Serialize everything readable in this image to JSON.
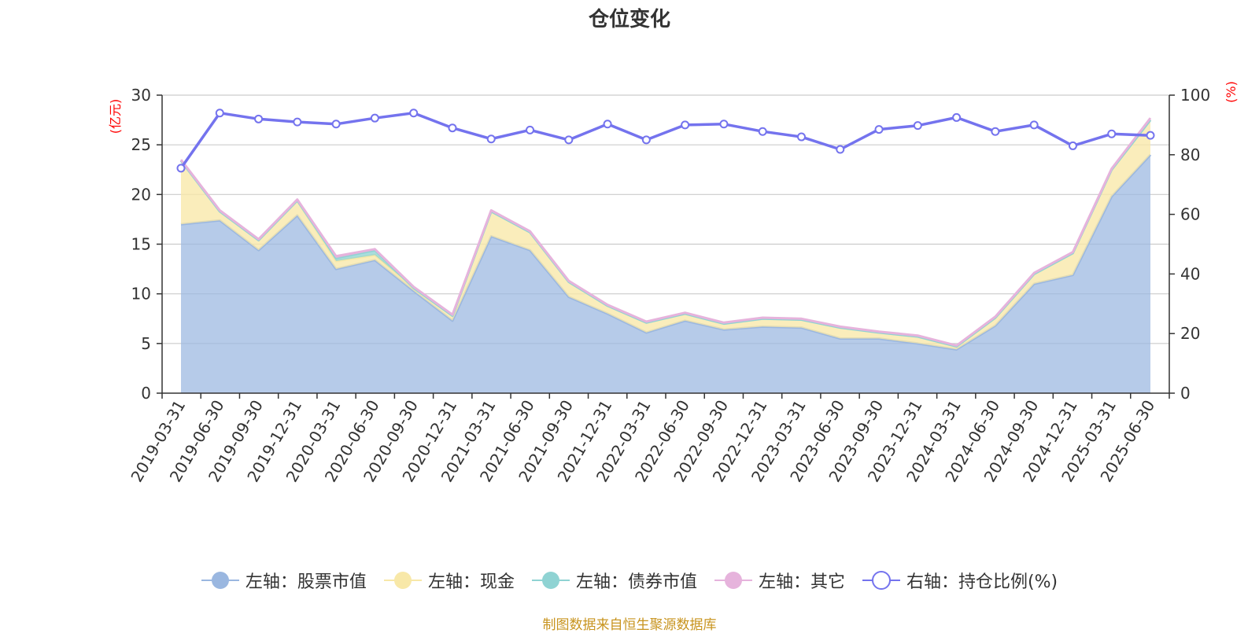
{
  "title": "仓位变化",
  "source_note": "制图数据来自恒生聚源数据库",
  "left_unit": "(亿元)",
  "right_unit": "(%)",
  "legend": [
    {
      "label": "左轴：股票市值",
      "color": "#9ab7e0",
      "marker": "circle-filled"
    },
    {
      "label": "左轴：现金",
      "color": "#f8e8a8",
      "marker": "circle-filled"
    },
    {
      "label": "左轴：债券市值",
      "color": "#8fd3d3",
      "marker": "circle-filled"
    },
    {
      "label": "左轴：其它",
      "color": "#e6b3dc",
      "marker": "circle-filled"
    },
    {
      "label": "右轴：持仓比例(%)",
      "color": "#7473ee",
      "marker": "circle-hollow"
    }
  ],
  "chart_data": {
    "type": "area",
    "title": "仓位变化",
    "categories": [
      "2019-03-31",
      "2019-06-30",
      "2019-09-30",
      "2019-12-31",
      "2020-03-31",
      "2020-06-30",
      "2020-09-30",
      "2020-12-31",
      "2021-03-31",
      "2021-06-30",
      "2021-09-30",
      "2021-12-31",
      "2022-03-31",
      "2022-06-30",
      "2022-09-30",
      "2022-12-31",
      "2023-03-31",
      "2023-06-30",
      "2023-09-30",
      "2023-12-31",
      "2024-03-31",
      "2024-06-30",
      "2024-09-30",
      "2024-12-31",
      "2025-03-31",
      "2025-06-30"
    ],
    "left_axis": {
      "min": 0,
      "max": 30,
      "ticks": [
        0,
        5,
        10,
        15,
        20,
        25,
        30
      ],
      "unit": "(亿元)"
    },
    "right_axis": {
      "min": 0,
      "max": 100,
      "ticks": [
        0,
        20,
        40,
        60,
        80,
        100
      ],
      "unit": "(%)"
    },
    "stacked": true,
    "grid": true,
    "legend_position": "bottom",
    "series": [
      {
        "name": "左轴：股票市值",
        "axis": "left",
        "color": "#9ab7e0",
        "values": [
          17.0,
          17.4,
          14.4,
          17.9,
          12.5,
          13.4,
          10.3,
          7.3,
          15.8,
          14.4,
          9.7,
          8.0,
          6.1,
          7.3,
          6.4,
          6.7,
          6.6,
          5.5,
          5.5,
          5.0,
          4.4,
          6.8,
          11.0,
          11.9,
          19.8,
          24.0
        ]
      },
      {
        "name": "左轴：现金",
        "axis": "left",
        "color": "#f8e8a8",
        "values": [
          6.4,
          0.9,
          1.0,
          1.5,
          0.8,
          0.5,
          0.3,
          0.5,
          2.5,
          1.8,
          1.5,
          0.8,
          1.0,
          0.7,
          0.6,
          0.8,
          0.8,
          1.1,
          0.6,
          0.7,
          0.3,
          0.8,
          1.0,
          2.2,
          2.7,
          3.5
        ]
      },
      {
        "name": "左轴：债券市值",
        "axis": "left",
        "color": "#8fd3d3",
        "values": [
          0,
          0,
          0,
          0,
          0.3,
          0.5,
          0,
          0,
          0,
          0,
          0,
          0,
          0,
          0,
          0,
          0,
          0,
          0,
          0,
          0,
          0,
          0,
          0,
          0,
          0,
          0
        ]
      },
      {
        "name": "左轴：其它",
        "axis": "left",
        "color": "#e6b3dc",
        "values": [
          0.1,
          0.1,
          0.1,
          0.1,
          0.2,
          0.1,
          0.1,
          0.1,
          0.1,
          0.1,
          0.1,
          0.1,
          0.1,
          0.1,
          0.1,
          0.1,
          0.1,
          0.1,
          0.1,
          0.1,
          0.1,
          0.1,
          0.1,
          0.1,
          0.1,
          0.2
        ]
      },
      {
        "name": "右轴：持仓比例(%)",
        "axis": "right",
        "type": "line",
        "color": "#7473ee",
        "values": [
          75.5,
          94.0,
          92.0,
          91.0,
          90.3,
          92.3,
          94.0,
          89.0,
          85.3,
          88.3,
          85.0,
          90.3,
          85.0,
          90.0,
          90.3,
          87.8,
          86.0,
          81.8,
          88.5,
          89.8,
          92.5,
          87.8,
          90.0,
          83.0,
          87.0,
          86.5
        ]
      }
    ]
  }
}
